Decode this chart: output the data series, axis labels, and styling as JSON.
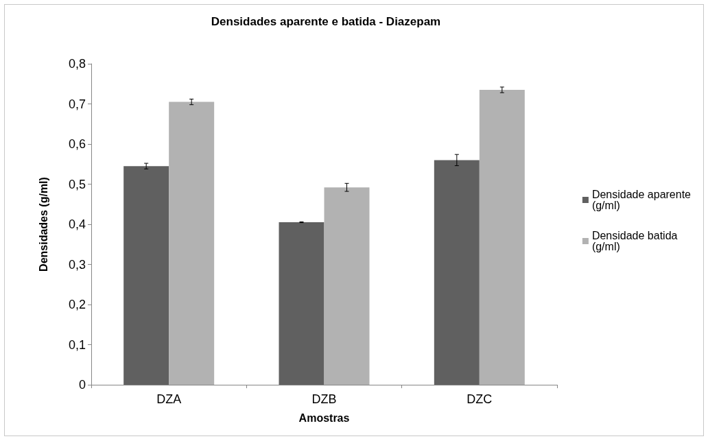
{
  "chart_data": {
    "type": "bar",
    "title": "Densidades aparente e batida - Diazepam",
    "xlabel": "Amostras",
    "ylabel": "Densidades (g/ml)",
    "categories": [
      "DZA",
      "DZB",
      "DZC"
    ],
    "series": [
      {
        "name": "Densidade aparente (g/ml)",
        "color": "#606060",
        "values": [
          0.545,
          0.405,
          0.56
        ],
        "errors": [
          0.007,
          0.001,
          0.014
        ]
      },
      {
        "name": "Densidade batida (g/ml)",
        "color": "#b2b2b2",
        "values": [
          0.705,
          0.492,
          0.735
        ],
        "errors": [
          0.007,
          0.01,
          0.007
        ]
      }
    ],
    "ylim": [
      0,
      0.8
    ],
    "yticks": [
      0,
      {
        "value": 0.1,
        "label": "0,1"
      },
      {
        "value": 0.2,
        "label": "0,2"
      },
      {
        "value": 0.3,
        "label": "0,3"
      },
      {
        "value": 0.4,
        "label": "0,4"
      },
      {
        "value": 0.5,
        "label": "0,5"
      },
      {
        "value": 0.6,
        "label": "0,6"
      },
      {
        "value": 0.7,
        "label": "0,7"
      },
      {
        "value": 0.8,
        "label": "0,8"
      }
    ],
    "grid": false,
    "legend": "right"
  }
}
